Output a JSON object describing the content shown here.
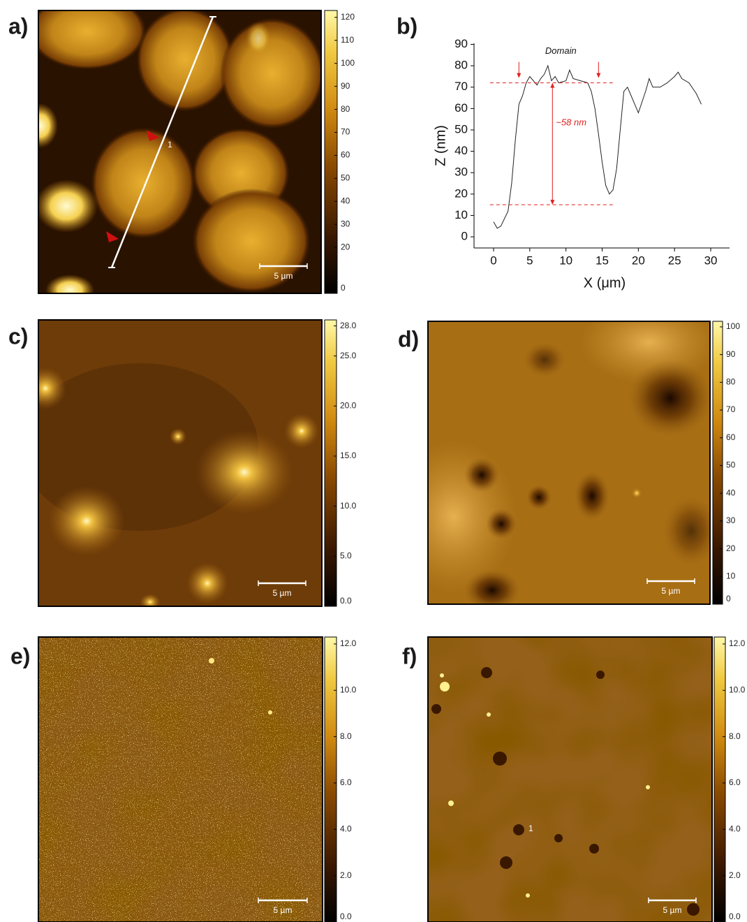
{
  "figure": {
    "panels": [
      {
        "label": "a)",
        "colorbar": {
          "ticks": [
            0,
            20,
            30,
            40,
            50,
            60,
            70,
            80,
            90,
            100,
            110,
            120
          ],
          "lim": [
            0,
            123
          ]
        },
        "scale_bar": "5 µm",
        "marker": "1"
      },
      {
        "label": "c)",
        "colorbar": {
          "ticks": [
            {
              "value": 0,
              "label": "0.0"
            },
            {
              "value": 5,
              "label": "5.0"
            },
            {
              "value": 10,
              "label": "10.0"
            },
            {
              "value": 15,
              "label": "15.0"
            },
            {
              "value": 20,
              "label": "20.0"
            },
            {
              "value": 25,
              "label": "25.0"
            },
            {
              "value": 28,
              "label": "28.0"
            }
          ],
          "lim": [
            0,
            28.6
          ]
        },
        "scale_bar": "5 µm"
      },
      {
        "label": "d)",
        "colorbar": {
          "ticks": [
            0,
            10,
            20,
            30,
            40,
            50,
            60,
            70,
            80,
            90,
            100
          ],
          "lim": [
            0,
            102
          ]
        },
        "scale_bar": "5 µm"
      },
      {
        "label": "e)",
        "colorbar": {
          "ticks": [
            {
              "value": 0,
              "label": "0.0"
            },
            {
              "value": 2,
              "label": "2.0"
            },
            {
              "value": 4,
              "label": "4.0"
            },
            {
              "value": 6,
              "label": "6.0"
            },
            {
              "value": 8,
              "label": "8.0"
            },
            {
              "value": 10,
              "label": "10.0"
            },
            {
              "value": 12,
              "label": "12.0"
            }
          ],
          "lim": [
            0,
            12.3
          ]
        },
        "scale_bar": "5 µm"
      },
      {
        "label": "f)",
        "colorbar": {
          "ticks": [
            {
              "value": 0,
              "label": "0.0"
            },
            {
              "value": 2,
              "label": "2.0"
            },
            {
              "value": 4,
              "label": "4.0"
            },
            {
              "value": 6,
              "label": "6.0"
            },
            {
              "value": 8,
              "label": "8.0"
            },
            {
              "value": 10,
              "label": "10.0"
            },
            {
              "value": 12,
              "label": "12.0"
            }
          ],
          "lim": [
            0,
            12.3
          ]
        },
        "scale_bar": "5 µm",
        "marker": "1"
      }
    ]
  },
  "chart_data": {
    "type": "line",
    "panel_label": "b)",
    "x_label": "X (μm)",
    "y_label": "Z (nm)",
    "x": [
      0,
      0.5,
      1,
      2,
      2.5,
      3,
      3.5,
      4,
      4.5,
      5,
      5.5,
      6,
      6.5,
      7,
      7.5,
      8,
      8.5,
      9,
      10,
      10.5,
      11,
      12,
      13,
      13.5,
      14,
      14.5,
      15,
      15.5,
      16,
      16.5,
      17,
      17.5,
      18,
      18.5,
      19,
      19.5,
      20,
      21,
      21.5,
      22,
      23,
      24,
      25,
      25.5,
      26,
      27,
      28,
      28.7
    ],
    "values": [
      7,
      4,
      5,
      12,
      25,
      45,
      62,
      66,
      72,
      75,
      73,
      71,
      74,
      76,
      80,
      73,
      75,
      72,
      73,
      78,
      74,
      73,
      72,
      68,
      60,
      48,
      35,
      24,
      20,
      22,
      32,
      50,
      68,
      70,
      66,
      62,
      58,
      68,
      74,
      70,
      70,
      72,
      75,
      77,
      74,
      72,
      67,
      62
    ],
    "color": "#222",
    "xlim": [
      -2.7,
      32.6
    ],
    "ylim": [
      -5.2,
      90.5
    ],
    "xticks": [
      0,
      5,
      10,
      15,
      20,
      25,
      30
    ],
    "yticks": [
      0,
      10,
      20,
      30,
      40,
      50,
      60,
      70,
      80,
      90
    ],
    "reference_lines": [
      72,
      15
    ],
    "domain_bounds": [
      3.5,
      14.5
    ],
    "annotations": {
      "domain": "Domain",
      "height": "~58 nm"
    }
  }
}
